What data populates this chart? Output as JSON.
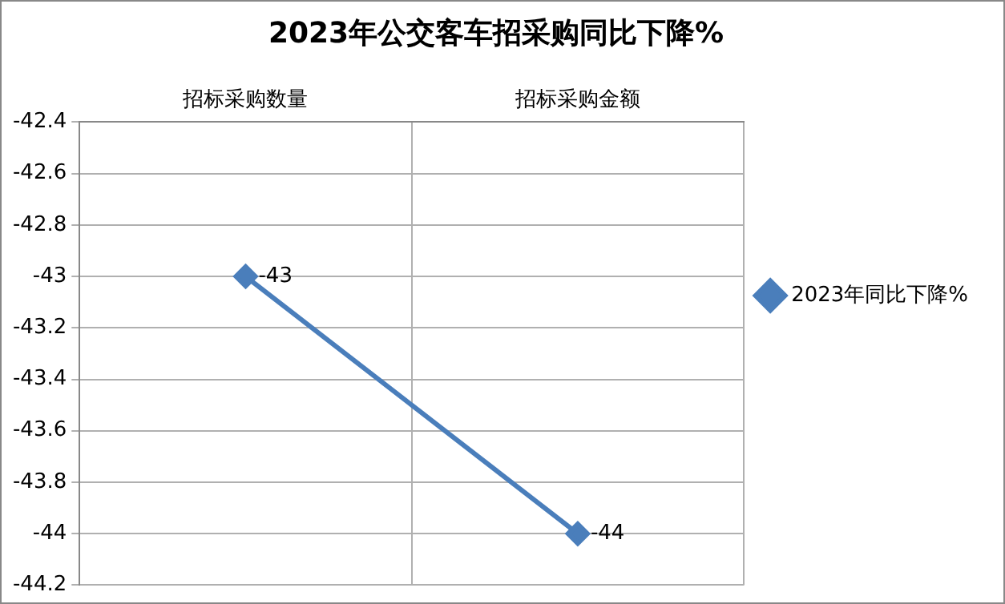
{
  "chart_data": {
    "type": "line",
    "title": "2023年公交客车招采购同比下降%",
    "categories": [
      "招标采购数量",
      "招标采购金额"
    ],
    "series": [
      {
        "name": "2023年同比下降%",
        "color": "#4a7ebb",
        "values": [
          -43,
          -44
        ]
      }
    ],
    "ylim": [
      -44.2,
      -42.4
    ],
    "yticks": [
      -44.2,
      -44,
      -43.8,
      -43.6,
      -43.4,
      -43.2,
      -43,
      -42.8,
      -42.6,
      -42.4
    ],
    "grid": true,
    "legend": "right",
    "marker": "diamond",
    "line_style": "solid",
    "data_labels": true
  }
}
